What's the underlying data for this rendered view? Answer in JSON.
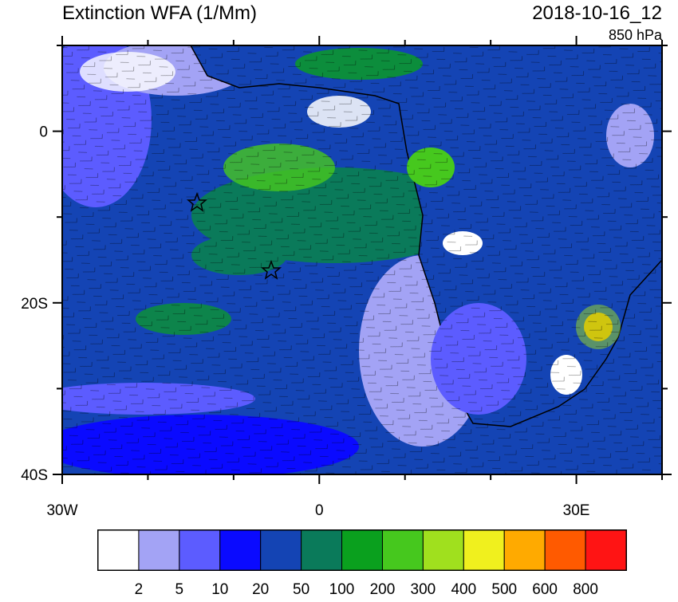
{
  "header": {
    "title": "Extinction WFA (1/Mm)",
    "date": "2018-10-16_12",
    "level": "850 hPa"
  },
  "map": {
    "lon_range": [
      -30,
      40
    ],
    "lat_range": [
      10,
      -40
    ],
    "lon_ticks": [
      {
        "value": -30,
        "label": "30W"
      },
      {
        "value": 0,
        "label": "0"
      },
      {
        "value": 30,
        "label": "30E"
      }
    ],
    "lat_ticks": [
      {
        "value": 0,
        "label": "0"
      },
      {
        "value": -20,
        "label": "20S"
      },
      {
        "value": -40,
        "label": "40S"
      }
    ],
    "lon_minor": [
      -20,
      -10,
      10,
      20,
      40
    ],
    "lat_minor": [
      10,
      -10,
      -30
    ]
  },
  "colorbar": {
    "colors": [
      "#ffffff",
      "#a3a3f5",
      "#5c5cff",
      "#0a0aff",
      "#1444b4",
      "#0a7a5a",
      "#0aa01e",
      "#46c81e",
      "#a0e01e",
      "#f0f01e",
      "#ffaa00",
      "#ff5a00",
      "#ff1414"
    ],
    "levels": [
      "2",
      "5",
      "10",
      "20",
      "50",
      "100",
      "200",
      "300",
      "400",
      "500",
      "600",
      "800"
    ]
  }
}
